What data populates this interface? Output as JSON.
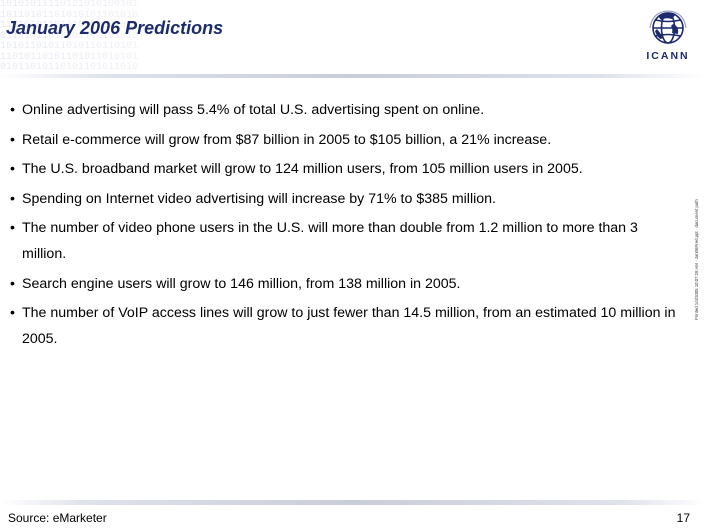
{
  "header": {
    "title": "January 2006 Predictions",
    "background_pattern": "10101011110121010100101\n10110101101010101101010\n11010101101010101101011\n01101011010101101101010\n10101101011010110110101\n11010110101101011010101\n01011010110101101011010"
  },
  "logo": {
    "icon": "globe-icon",
    "text": "ICANN"
  },
  "bullets": [
    "Online advertising will pass 5.4% of total U.S. advertising spent on online.",
    "Retail e-commerce will grow from $87 billion in 2005 to $105 billion, a 21% increase.",
    "The U.S. broadband market will grow to 124 million users, from 105 million users in 2005.",
    "Spending on Internet video advertising will increase by 71% to $385 million.",
    "The number of video phone users in the U.S. will more than double from 1.2 million to more than 3 million.",
    "Search engine users will grow to 146 million, from 138 million in 2005.",
    "The number of VoIP access lines will grow to just fewer than 14.5 million, from an estimated 10 million in 2005."
  ],
  "bullet_symbol": "•",
  "side_text": "Printed 1/4/2005 10:07:28 AM · Jan06Pred.ppt · document path",
  "footer": {
    "source": "Source: eMarketer",
    "page_number": "17"
  },
  "colors": {
    "title": "#1c2a6e",
    "text": "#000000",
    "rule": "#c9cdd8"
  }
}
